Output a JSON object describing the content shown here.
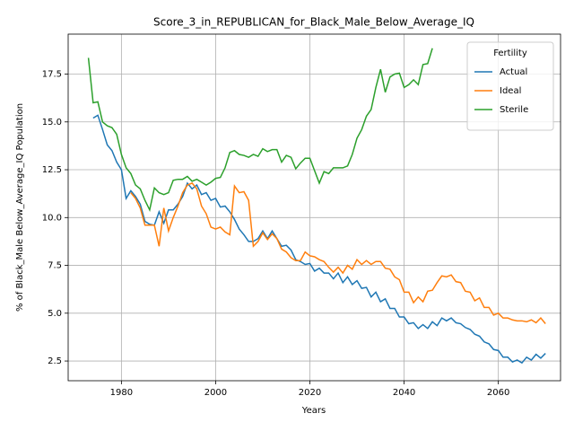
{
  "chart_data": {
    "type": "line",
    "title": "Score_3_in_REPUBLICAN_for_Black_Male_Below_Average_IQ",
    "x_label": "Years",
    "y_label": "% of Black_Male Below_Average_IQ Population",
    "legend_title": "Fertility",
    "legend_loc": "upper right",
    "grid": true,
    "xlim": [
      1968.7,
      2073.2
    ],
    "ylim": [
      1.47,
      19.59
    ],
    "xticks": [
      1980,
      2000,
      2020,
      2040,
      2060
    ],
    "yticks": [
      2.5,
      {
        "value": 5,
        "label": "5.0"
      },
      7.5,
      {
        "value": 10,
        "label": "10.0"
      },
      12.5,
      {
        "value": 15,
        "label": "15.0"
      },
      17.5
    ],
    "x": [
      1973,
      1974,
      1975,
      1976,
      1977,
      1978,
      1979,
      1980,
      1981,
      1982,
      1983,
      1984,
      1985,
      1986,
      1987,
      1988,
      1989,
      1990,
      1991,
      1992,
      1993,
      1994,
      1995,
      1996,
      1997,
      1998,
      1999,
      2000,
      2001,
      2002,
      2003,
      2004,
      2005,
      2006,
      2007,
      2008,
      2009,
      2010,
      2011,
      2012,
      2013,
      2014,
      2015,
      2016,
      2017,
      2018,
      2019,
      2020,
      2021,
      2022,
      2023,
      2024,
      2025,
      2026,
      2027,
      2028,
      2029,
      2030,
      2031,
      2032,
      2033,
      2034,
      2035,
      2036,
      2037,
      2038,
      2039,
      2040,
      2041,
      2042,
      2043,
      2044,
      2045,
      2046,
      2047,
      2048,
      2049,
      2050,
      2051,
      2052,
      2053,
      2054,
      2055,
      2056,
      2057,
      2058,
      2059,
      2060,
      2061,
      2062,
      2063,
      2064,
      2065,
      2066,
      2067,
      2068,
      2069,
      2070
    ],
    "series": [
      {
        "name": "Actual",
        "color": "#1f77b4",
        "values": [
          null,
          15.2,
          15.35,
          14.6,
          13.8,
          13.5,
          12.9,
          12.5,
          11.0,
          11.4,
          11.1,
          10.7,
          9.8,
          9.65,
          9.6,
          10.3,
          9.7,
          10.4,
          10.4,
          10.7,
          11.1,
          11.8,
          11.5,
          11.7,
          11.2,
          11.3,
          10.9,
          11.0,
          10.55,
          10.6,
          10.3,
          9.9,
          9.4,
          9.1,
          8.75,
          8.75,
          8.9,
          9.3,
          8.9,
          9.3,
          8.9,
          8.5,
          8.55,
          8.3,
          7.8,
          7.7,
          7.55,
          7.6,
          7.2,
          7.35,
          7.1,
          7.1,
          6.8,
          7.1,
          6.6,
          6.9,
          6.5,
          6.7,
          6.3,
          6.35,
          5.85,
          6.1,
          5.6,
          5.75,
          5.25,
          5.25,
          4.8,
          4.8,
          4.45,
          4.5,
          4.2,
          4.4,
          4.2,
          4.55,
          4.35,
          4.75,
          4.6,
          4.75,
          4.5,
          4.45,
          4.25,
          4.15,
          3.9,
          3.8,
          3.5,
          3.4,
          3.1,
          3.05,
          2.7,
          2.7,
          2.45,
          2.55,
          2.4,
          2.7,
          2.55,
          2.85,
          2.65,
          2.9
        ]
      },
      {
        "name": "Ideal",
        "color": "#ff7f0e",
        "values": [
          null,
          null,
          null,
          null,
          null,
          null,
          null,
          null,
          null,
          11.3,
          11.0,
          10.5,
          9.6,
          9.6,
          9.6,
          8.5,
          10.5,
          9.3,
          10.0,
          10.6,
          11.3,
          11.7,
          11.8,
          11.5,
          10.6,
          10.2,
          9.5,
          9.4,
          9.5,
          9.25,
          9.1,
          11.65,
          11.3,
          11.35,
          10.9,
          8.5,
          8.75,
          9.2,
          8.85,
          9.15,
          8.9,
          8.35,
          8.2,
          7.9,
          7.75,
          7.75,
          8.2,
          8.0,
          7.95,
          7.8,
          7.7,
          7.4,
          7.15,
          7.4,
          7.1,
          7.5,
          7.3,
          7.8,
          7.55,
          7.75,
          7.55,
          7.7,
          7.7,
          7.35,
          7.3,
          6.9,
          6.75,
          6.1,
          6.1,
          5.55,
          5.85,
          5.6,
          6.15,
          6.2,
          6.6,
          6.95,
          6.9,
          7.0,
          6.65,
          6.6,
          6.15,
          6.1,
          5.65,
          5.8,
          5.3,
          5.3,
          4.9,
          5.0,
          4.75,
          4.75,
          4.65,
          4.6,
          4.6,
          4.55,
          4.65,
          4.5,
          4.75,
          4.45
        ]
      },
      {
        "name": "Sterile",
        "color": "#2ca02c",
        "values": [
          18.35,
          16.0,
          16.05,
          15.0,
          14.8,
          14.7,
          14.35,
          13.3,
          12.6,
          12.3,
          11.7,
          11.5,
          10.9,
          10.4,
          11.55,
          11.3,
          11.2,
          11.3,
          11.95,
          12.0,
          12.0,
          12.15,
          11.9,
          12.0,
          11.85,
          11.7,
          11.85,
          12.05,
          12.1,
          12.6,
          13.4,
          13.5,
          13.3,
          13.25,
          13.15,
          13.3,
          13.2,
          13.6,
          13.45,
          13.55,
          13.55,
          12.9,
          13.25,
          13.15,
          12.55,
          12.85,
          13.1,
          13.1,
          12.45,
          11.8,
          12.4,
          12.3,
          12.6,
          12.6,
          12.6,
          12.7,
          13.3,
          14.15,
          14.6,
          15.3,
          15.65,
          16.8,
          17.75,
          16.55,
          17.35,
          17.5,
          17.55,
          16.8,
          16.95,
          17.2,
          16.95,
          18.0,
          18.05,
          18.85,
          null,
          null,
          null,
          null,
          null,
          null,
          null,
          null,
          null,
          null,
          null,
          null,
          null,
          null,
          null,
          null,
          null,
          null,
          null,
          null,
          null,
          null,
          null,
          null
        ]
      }
    ]
  }
}
